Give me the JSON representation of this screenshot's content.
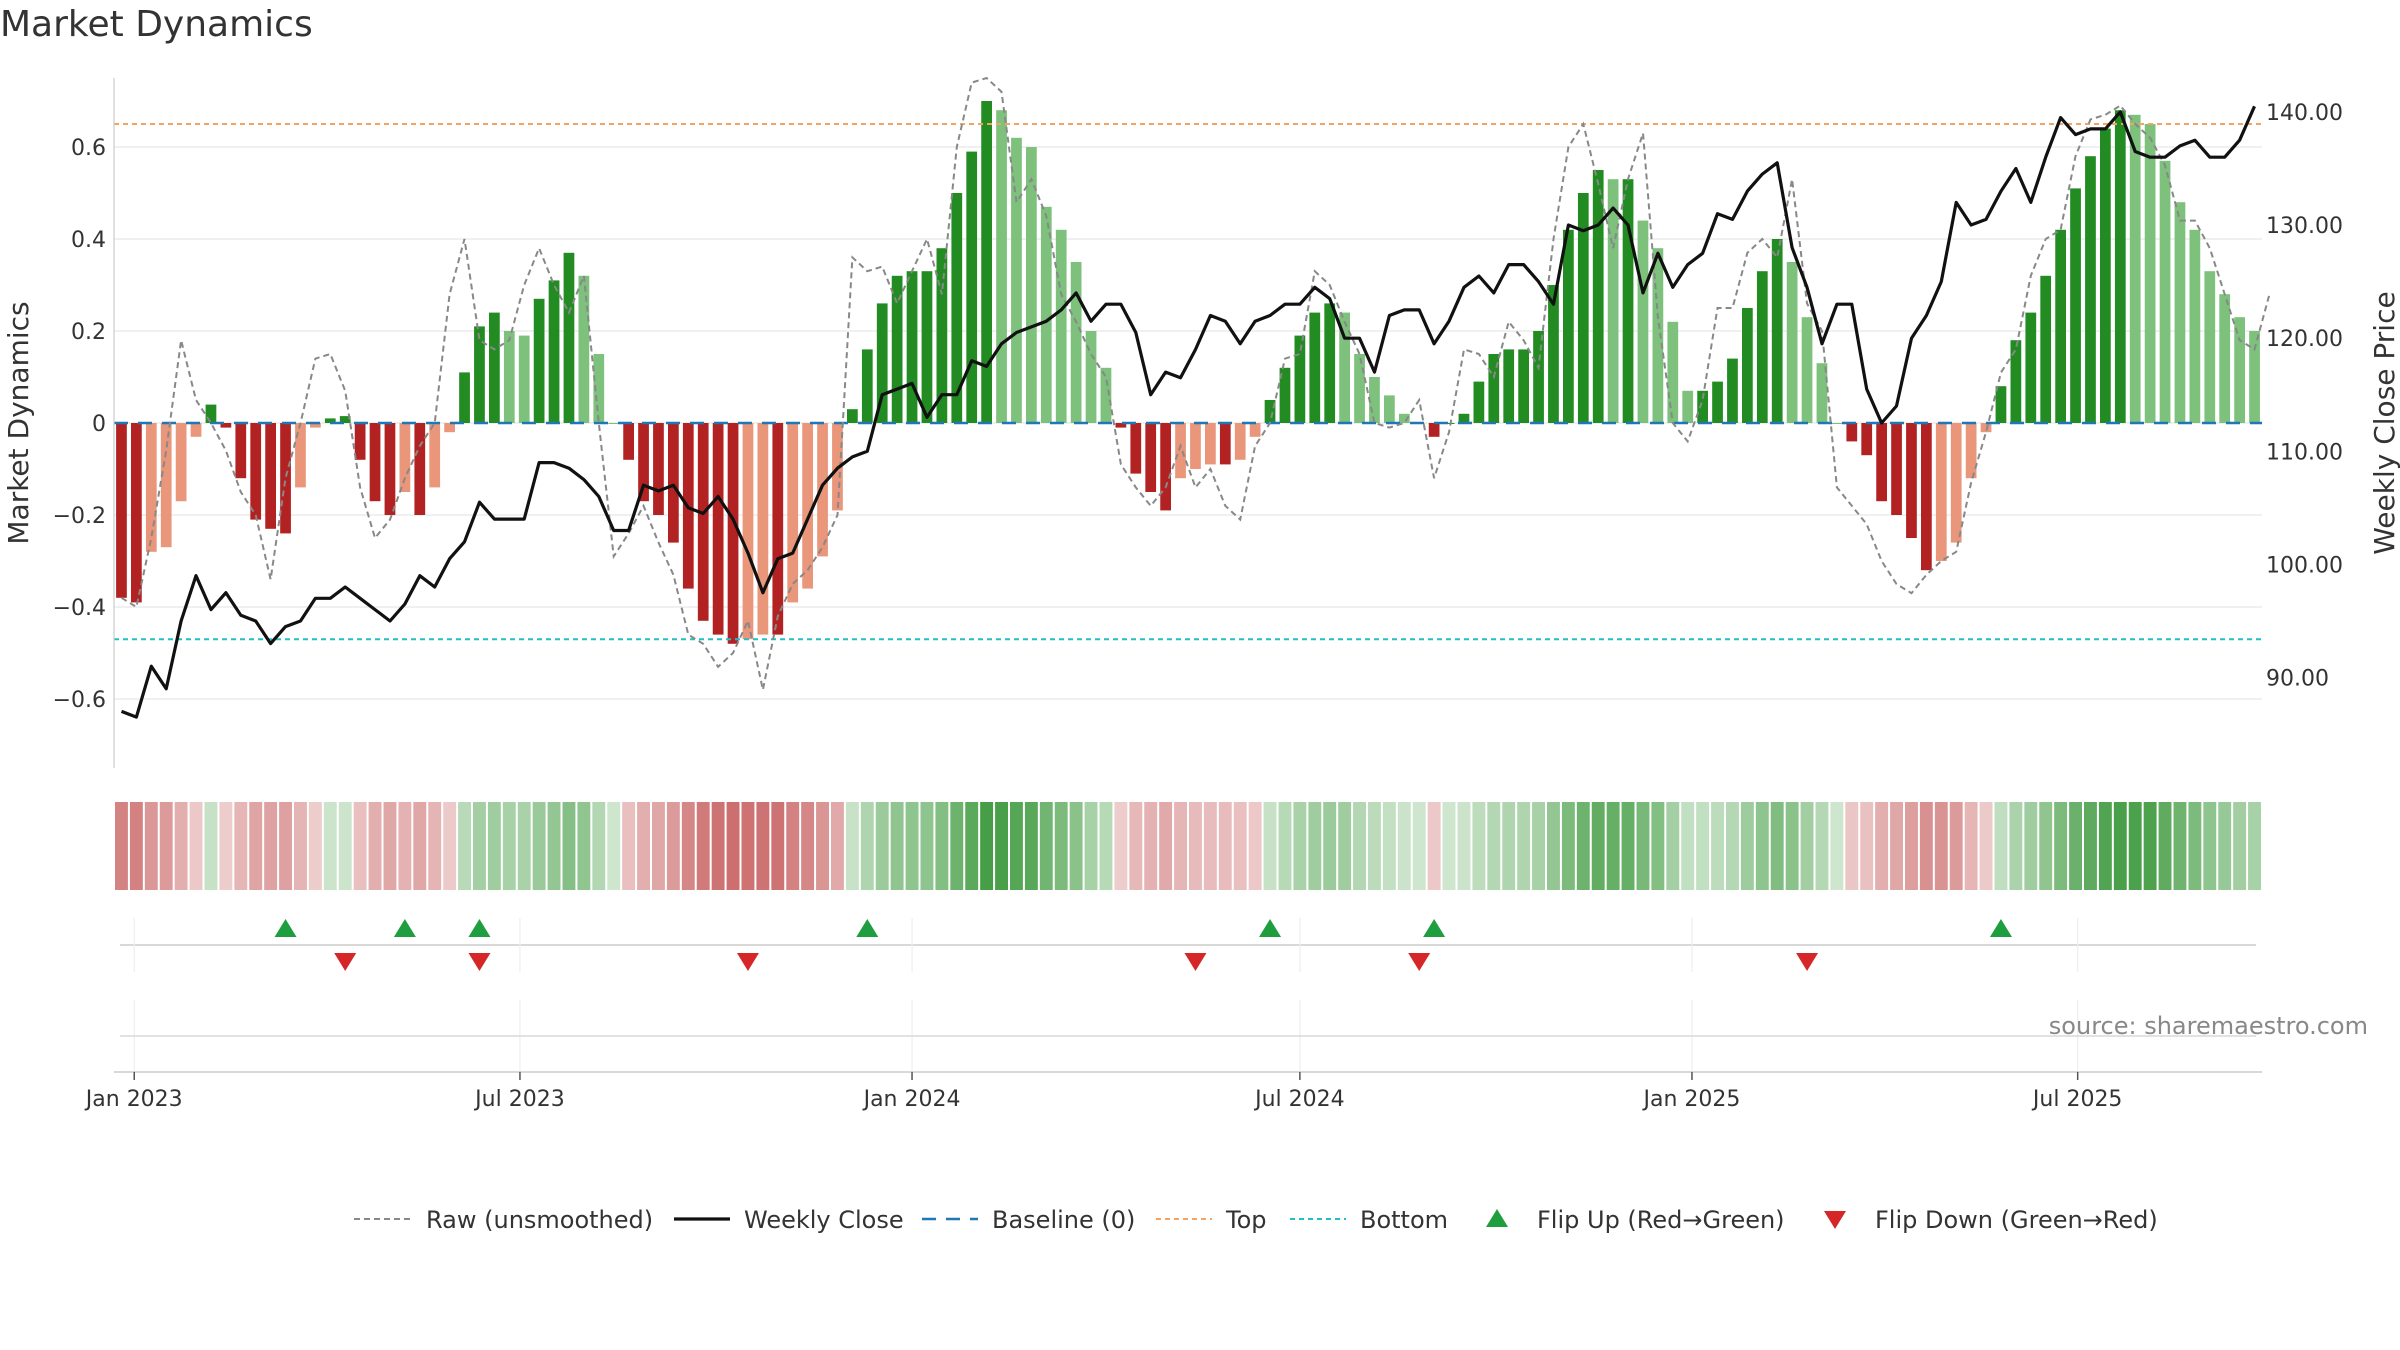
{
  "title": "Market Dynamics",
  "source_text": "source: sharemaestro.com",
  "colors": {
    "red_strong": "#b22222",
    "red_light": "#e9967a",
    "green_strong": "#228b22",
    "green_light": "#7dc17d",
    "top_line": "#f4a460",
    "bottom_line": "#20c0c8",
    "baseline": "#1f77b4",
    "raw": "#888888",
    "close": "#111111",
    "flip_up": "#1e9e3e",
    "flip_down": "#d62728"
  },
  "chart_data": {
    "type": "bar",
    "title": "Market Dynamics",
    "ylabel_left": "Market Dynamics",
    "ylabel_right": "Weekly Close Price",
    "ylim_left": [
      -0.75,
      0.75
    ],
    "yticks_left": [
      "0.6",
      "0.4",
      "0.2",
      "0",
      "−0.2",
      "−0.4",
      "−0.6"
    ],
    "ylim_right": [
      82,
      143
    ],
    "yticks_right": [
      "140.00",
      "130.00",
      "120.00",
      "110.00",
      "100.00",
      "90.00"
    ],
    "x_ticks": [
      "Jan 2023",
      "Jul 2023",
      "Jan 2024",
      "Jul 2024",
      "Jan 2025",
      "Jul 2025"
    ],
    "start_date": "2022-12-26",
    "frequency": "weekly",
    "top_level": 0.65,
    "bottom_level": -0.47,
    "baseline_level": 0,
    "momentum": [
      -0.38,
      -0.39,
      -0.28,
      -0.27,
      -0.17,
      -0.03,
      0.04,
      -0.01,
      -0.12,
      -0.21,
      -0.23,
      -0.24,
      -0.14,
      -0.01,
      0.01,
      0.015,
      -0.08,
      -0.17,
      -0.2,
      -0.15,
      -0.2,
      -0.14,
      -0.02,
      0.11,
      0.21,
      0.24,
      0.2,
      0.19,
      0.27,
      0.31,
      0.37,
      0.32,
      0.15,
      0.0,
      -0.08,
      -0.17,
      -0.2,
      -0.26,
      -0.36,
      -0.43,
      -0.46,
      -0.48,
      -0.47,
      -0.46,
      -0.46,
      -0.39,
      -0.36,
      -0.29,
      -0.19,
      0.03,
      0.16,
      0.26,
      0.32,
      0.33,
      0.33,
      0.38,
      0.5,
      0.59,
      0.7,
      0.68,
      0.62,
      0.6,
      0.47,
      0.42,
      0.35,
      0.2,
      0.12,
      -0.01,
      -0.11,
      -0.15,
      -0.19,
      -0.12,
      -0.1,
      -0.09,
      -0.09,
      -0.08,
      -0.03,
      0.05,
      0.12,
      0.19,
      0.24,
      0.26,
      0.24,
      0.15,
      0.1,
      0.06,
      0.02,
      0.0,
      -0.03,
      0.0,
      0.02,
      0.09,
      0.15,
      0.16,
      0.16,
      0.2,
      0.3,
      0.42,
      0.5,
      0.55,
      0.53,
      0.53,
      0.44,
      0.38,
      0.22,
      0.07,
      0.07,
      0.09,
      0.14,
      0.25,
      0.33,
      0.4,
      0.35,
      0.23,
      0.13,
      0.0,
      -0.04,
      -0.07,
      -0.17,
      -0.2,
      -0.25,
      -0.32,
      -0.3,
      -0.26,
      -0.12,
      -0.02,
      0.08,
      0.18,
      0.24,
      0.32,
      0.42,
      0.51,
      0.58,
      0.64,
      0.68,
      0.67,
      0.65,
      0.57,
      0.48,
      0.42,
      0.33,
      0.28,
      0.23,
      0.2
    ],
    "raw": [
      -0.38,
      -0.4,
      -0.25,
      -0.06,
      0.18,
      0.05,
      0.0,
      -0.06,
      -0.15,
      -0.2,
      -0.34,
      -0.12,
      0.0,
      0.14,
      0.15,
      0.07,
      -0.14,
      -0.25,
      -0.21,
      -0.12,
      -0.05,
      0.0,
      0.28,
      0.4,
      0.18,
      0.16,
      0.18,
      0.3,
      0.38,
      0.3,
      0.24,
      0.32,
      0.0,
      -0.29,
      -0.24,
      -0.18,
      -0.26,
      -0.33,
      -0.46,
      -0.48,
      -0.53,
      -0.5,
      -0.43,
      -0.58,
      -0.42,
      -0.35,
      -0.32,
      -0.27,
      -0.2,
      0.36,
      0.33,
      0.34,
      0.26,
      0.33,
      0.4,
      0.28,
      0.6,
      0.74,
      0.75,
      0.72,
      0.48,
      0.53,
      0.45,
      0.28,
      0.22,
      0.15,
      0.1,
      -0.09,
      -0.14,
      -0.18,
      -0.14,
      -0.05,
      -0.14,
      -0.1,
      -0.18,
      -0.21,
      -0.05,
      0.0,
      0.14,
      0.15,
      0.33,
      0.3,
      0.22,
      0.15,
      0.0,
      -0.01,
      0.0,
      0.05,
      -0.12,
      -0.02,
      0.16,
      0.15,
      0.1,
      0.22,
      0.18,
      0.12,
      0.4,
      0.6,
      0.65,
      0.52,
      0.38,
      0.53,
      0.63,
      0.23,
      0.0,
      -0.04,
      0.05,
      0.25,
      0.25,
      0.37,
      0.4,
      0.36,
      0.53,
      0.26,
      0.2,
      -0.14,
      -0.18,
      -0.22,
      -0.3,
      -0.35,
      -0.37,
      -0.33,
      -0.3,
      -0.28,
      -0.13,
      -0.02,
      0.11,
      0.16,
      0.32,
      0.4,
      0.42,
      0.58,
      0.66,
      0.67,
      0.69,
      0.65,
      0.62,
      0.56,
      0.44,
      0.44,
      0.38,
      0.28,
      0.18,
      0.16,
      0.28
    ],
    "weekly_close": [
      87,
      86.5,
      91,
      89,
      95,
      99,
      96,
      97.5,
      95.5,
      95,
      93,
      94.5,
      95,
      97,
      97,
      98,
      97,
      96,
      95,
      96.5,
      99,
      98,
      100.5,
      102,
      105.5,
      104,
      104,
      104,
      109,
      109,
      108.5,
      107.5,
      106,
      103,
      103,
      107,
      106.5,
      107,
      105,
      104.5,
      106,
      104,
      101,
      97.5,
      100.5,
      101,
      104,
      107,
      108.5,
      109.5,
      110,
      115,
      115.5,
      116,
      113,
      115,
      115,
      118,
      117.5,
      119.5,
      120.5,
      121,
      121.5,
      122.5,
      124,
      121.5,
      123,
      123,
      120.5,
      115,
      117,
      116.5,
      119,
      122,
      121.5,
      119.5,
      121.5,
      122,
      123,
      123,
      124.5,
      123.5,
      120,
      120,
      117,
      122,
      122.5,
      122.5,
      119.5,
      121.5,
      124.5,
      125.5,
      124,
      126.5,
      126.5,
      125,
      123,
      130,
      129.5,
      130,
      131.5,
      130,
      124,
      127.5,
      124.5,
      126.5,
      127.5,
      131,
      130.5,
      133,
      134.5,
      135.5,
      128,
      124.5,
      119.5,
      123,
      123,
      115.5,
      112.5,
      114,
      120,
      122,
      125,
      132,
      130,
      130.5,
      133,
      135,
      132,
      136,
      139.5,
      138,
      138.5,
      138.5,
      140,
      136.5,
      136,
      136,
      137,
      137.5,
      136,
      136,
      137.5,
      140.5
    ],
    "flip_up": [
      "2023-03-13",
      "2023-05-08",
      "2023-06-12",
      "2023-12-11",
      "2024-06-17",
      "2024-09-02",
      "2025-05-26"
    ],
    "flip_down": [
      "2023-04-10",
      "2023-06-12",
      "2023-10-16",
      "2024-05-13",
      "2024-08-26",
      "2025-02-24"
    ],
    "legend": [
      "Raw (unsmoothed)",
      "Weekly Close",
      "Baseline (0)",
      "Top",
      "Bottom",
      "Flip Up (Red→Green)",
      "Flip Down (Green→Red)"
    ],
    "legend_position": "bottom-center"
  }
}
